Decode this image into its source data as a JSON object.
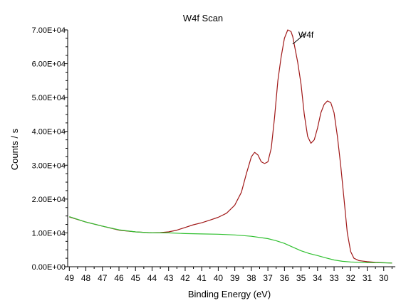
{
  "chart_data": {
    "type": "line",
    "title": "W4f Scan",
    "xlabel": "Binding Energy (eV)",
    "ylabel": "Counts / s",
    "xlim": [
      49.1,
      29.3
    ],
    "ylim": [
      0,
      70000
    ],
    "x_reversed": true,
    "grid": false,
    "x_ticks": [
      "49",
      "48",
      "47",
      "46",
      "45",
      "44",
      "43",
      "42",
      "41",
      "40",
      "39",
      "38",
      "37",
      "36",
      "35",
      "34",
      "33",
      "32",
      "31",
      "30"
    ],
    "y_ticks": [
      "0.00E+00",
      "1.00E+04",
      "2.00E+04",
      "3.00E+04",
      "4.00E+04",
      "5.00E+04",
      "6.00E+04",
      "7.00E+04"
    ],
    "annotations": [
      {
        "text": "W4f",
        "x": 35.2,
        "y": 70000
      }
    ],
    "series": [
      {
        "color": "#a01818",
        "x": [
          49.0,
          48.0,
          47.0,
          46.0,
          45.0,
          44.0,
          43.5,
          43.0,
          42.5,
          42.0,
          41.5,
          41.0,
          40.5,
          40.0,
          39.5,
          39.0,
          38.6,
          38.3,
          38.0,
          37.8,
          37.6,
          37.4,
          37.2,
          37.0,
          36.8,
          36.6,
          36.4,
          36.2,
          36.0,
          35.8,
          35.6,
          35.5,
          35.4,
          35.2,
          35.0,
          34.8,
          34.6,
          34.4,
          34.2,
          34.0,
          33.8,
          33.6,
          33.4,
          33.2,
          33.0,
          32.8,
          32.6,
          32.4,
          32.2,
          32.0,
          31.8,
          31.5,
          31.0,
          30.5,
          30.0,
          29.5
        ],
        "y": [
          14700,
          13200,
          12000,
          10800,
          10300,
          10000,
          10100,
          10300,
          10800,
          11600,
          12400,
          13000,
          13800,
          14600,
          15800,
          18200,
          22000,
          27500,
          32500,
          33800,
          33000,
          31000,
          30500,
          31000,
          35000,
          44000,
          55000,
          62000,
          67500,
          70000,
          69500,
          68000,
          65500,
          60500,
          54000,
          45000,
          38500,
          36500,
          37500,
          41000,
          45500,
          48000,
          49000,
          48500,
          45500,
          38500,
          30000,
          20000,
          10000,
          4500,
          2500,
          1800,
          1500,
          1300,
          1200,
          1100
        ]
      },
      {
        "color": "#30c030",
        "x": [
          49.0,
          48.0,
          47.0,
          46.0,
          45.0,
          44.0,
          43.0,
          42.0,
          41.0,
          40.0,
          39.0,
          38.0,
          37.0,
          36.5,
          36.0,
          35.5,
          35.0,
          34.5,
          34.0,
          33.5,
          33.0,
          32.5,
          32.0,
          31.5,
          31.0,
          30.5,
          30.0,
          29.5
        ],
        "y": [
          14800,
          13200,
          12000,
          10900,
          10300,
          10000,
          10000,
          9800,
          9700,
          9600,
          9400,
          9000,
          8300,
          7700,
          6900,
          5800,
          4700,
          3900,
          3300,
          2600,
          2000,
          1600,
          1400,
          1300,
          1250,
          1200,
          1150,
          1100
        ]
      }
    ]
  }
}
